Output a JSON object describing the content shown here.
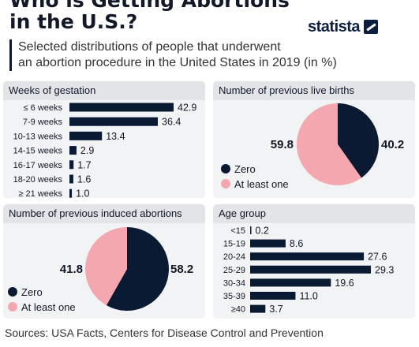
{
  "header": {
    "title_line1": "Who is Getting Abortions",
    "title_line2": "in the U.S.?",
    "subtitle_line1": "Selected distributions of people that underwent",
    "subtitle_line2": "an abortion procedure in the United States in 2019 (in %)",
    "brand": "statista"
  },
  "footer": {
    "source": "Sources: USA Facts, Centers for Disease Control and Prevention"
  },
  "colors": {
    "navy": "#0b1a33",
    "pink": "#f4a7ae",
    "panel_bg": "#f2f3f5",
    "panel_head": "#e2e4e8"
  },
  "chart_data": [
    {
      "type": "bar",
      "orientation": "horizontal",
      "title": "Weeks of gestation",
      "categories": [
        "≤ 6 weeks",
        "7-9 weeks",
        "10-13 weeks",
        "14-15 weeks",
        "16-17 weeks",
        "18-20 weeks",
        "≥ 21 weeks"
      ],
      "values": [
        42.9,
        36.4,
        13.4,
        2.9,
        1.7,
        1.6,
        1.0
      ],
      "value_labels": [
        "42.9",
        "36.4",
        "13.4",
        "2.9",
        "1.7",
        "1.6",
        "1.0"
      ],
      "xlim": [
        0,
        42.9
      ],
      "grid": false
    },
    {
      "type": "pie",
      "title": "Number of previous live births",
      "labels": [
        "Zero",
        "At least one"
      ],
      "values": [
        40.2,
        59.8
      ],
      "value_labels": [
        "40.2",
        "59.8"
      ],
      "legend_position": "bottom-left"
    },
    {
      "type": "pie",
      "title": "Number of previous induced abortions",
      "labels": [
        "Zero",
        "At least one"
      ],
      "values": [
        58.2,
        41.8
      ],
      "value_labels": [
        "58.2",
        "41.8"
      ],
      "legend_position": "bottom-left"
    },
    {
      "type": "bar",
      "orientation": "horizontal",
      "title": "Age group",
      "categories": [
        "<15",
        "15-19",
        "20-24",
        "25-29",
        "30-34",
        "35-39",
        "≥40"
      ],
      "values": [
        0.2,
        8.6,
        27.6,
        29.3,
        19.6,
        11.0,
        3.7
      ],
      "value_labels": [
        "0.2",
        "8.6",
        "27.6",
        "29.3",
        "19.6",
        "11.0",
        "3.7"
      ],
      "xlim": [
        0,
        29.3
      ],
      "grid": false
    }
  ]
}
